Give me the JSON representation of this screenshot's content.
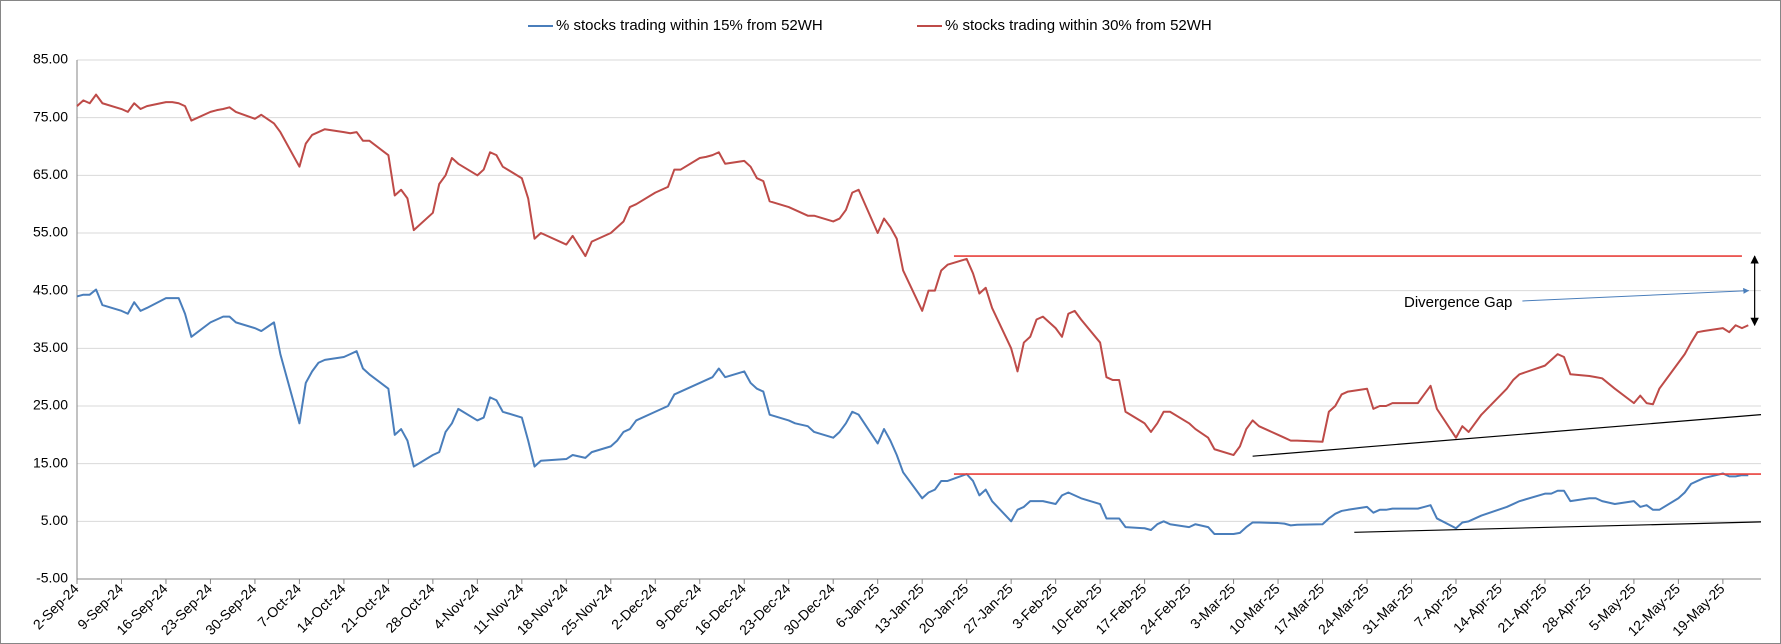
{
  "chart_data": {
    "type": "line",
    "x": [
      "2024-09-02",
      "2024-09-03",
      "2024-09-04",
      "2024-09-05",
      "2024-09-06",
      "2024-09-09",
      "2024-09-10",
      "2024-09-11",
      "2024-09-12",
      "2024-09-13",
      "2024-09-16",
      "2024-09-17",
      "2024-09-18",
      "2024-09-19",
      "2024-09-20",
      "2024-09-23",
      "2024-09-24",
      "2024-09-25",
      "2024-09-26",
      "2024-09-27",
      "2024-09-30",
      "2024-10-01",
      "2024-10-03",
      "2024-10-04",
      "2024-10-07",
      "2024-10-08",
      "2024-10-09",
      "2024-10-10",
      "2024-10-11",
      "2024-10-14",
      "2024-10-15",
      "2024-10-16",
      "2024-10-17",
      "2024-10-18",
      "2024-10-21",
      "2024-10-22",
      "2024-10-23",
      "2024-10-24",
      "2024-10-25",
      "2024-10-28",
      "2024-10-29",
      "2024-10-30",
      "2024-10-31",
      "2024-11-01",
      "2024-11-04",
      "2024-11-05",
      "2024-11-06",
      "2024-11-07",
      "2024-11-08",
      "2024-11-11",
      "2024-11-12",
      "2024-11-13",
      "2024-11-14",
      "2024-11-18",
      "2024-11-19",
      "2024-11-21",
      "2024-11-22",
      "2024-11-25",
      "2024-11-26",
      "2024-11-27",
      "2024-11-28",
      "2024-11-29",
      "2024-12-02",
      "2024-12-03",
      "2024-12-04",
      "2024-12-05",
      "2024-12-06",
      "2024-12-09",
      "2024-12-10",
      "2024-12-11",
      "2024-12-12",
      "2024-12-13",
      "2024-12-16",
      "2024-12-17",
      "2024-12-18",
      "2024-12-19",
      "2024-12-20",
      "2024-12-23",
      "2024-12-24",
      "2024-12-26",
      "2024-12-27",
      "2024-12-30",
      "2024-12-31",
      "2025-01-01",
      "2025-01-02",
      "2025-01-03",
      "2025-01-06",
      "2025-01-07",
      "2025-01-08",
      "2025-01-09",
      "2025-01-10",
      "2025-01-13",
      "2025-01-14",
      "2025-01-15",
      "2025-01-16",
      "2025-01-17",
      "2025-01-20",
      "2025-01-21",
      "2025-01-22",
      "2025-01-23",
      "2025-01-24",
      "2025-01-27",
      "2025-01-28",
      "2025-01-29",
      "2025-01-30",
      "2025-01-31",
      "2025-02-01",
      "2025-02-03",
      "2025-02-04",
      "2025-02-05",
      "2025-02-06",
      "2025-02-07",
      "2025-02-10",
      "2025-02-11",
      "2025-02-12",
      "2025-02-13",
      "2025-02-14",
      "2025-02-17",
      "2025-02-18",
      "2025-02-19",
      "2025-02-20",
      "2025-02-21",
      "2025-02-24",
      "2025-02-25",
      "2025-02-27",
      "2025-02-28",
      "2025-03-03",
      "2025-03-04",
      "2025-03-05",
      "2025-03-06",
      "2025-03-07",
      "2025-03-10",
      "2025-03-11",
      "2025-03-12",
      "2025-03-13",
      "2025-03-17",
      "2025-03-18",
      "2025-03-19",
      "2025-03-20",
      "2025-03-21",
      "2025-03-24",
      "2025-03-25",
      "2025-03-26",
      "2025-03-27",
      "2025-03-28",
      "2025-04-01",
      "2025-04-02",
      "2025-04-03",
      "2025-04-04",
      "2025-04-07",
      "2025-04-08",
      "2025-04-09",
      "2025-04-11",
      "2025-04-15",
      "2025-04-16",
      "2025-04-17",
      "2025-04-21",
      "2025-04-22",
      "2025-04-23",
      "2025-04-24",
      "2025-04-25",
      "2025-04-28",
      "2025-04-29",
      "2025-04-30",
      "2025-05-02",
      "2025-05-05",
      "2025-05-06",
      "2025-05-07",
      "2025-05-08",
      "2025-05-09",
      "2025-05-12",
      "2025-05-13",
      "2025-05-14",
      "2025-05-15",
      "2025-05-16",
      "2025-05-19",
      "2025-05-20",
      "2025-05-21",
      "2025-05-22",
      "2025-05-23"
    ],
    "series": [
      {
        "name": "% stocks trading within 15% from 52WH",
        "color": "#4a7ebb",
        "values": [
          44,
          44.3,
          44.3,
          45.2,
          42.5,
          41.5,
          41,
          43,
          41.5,
          42,
          43.7,
          43.7,
          43.7,
          41,
          37,
          39.5,
          40,
          40.5,
          40.5,
          39.5,
          38.5,
          38,
          39.5,
          34,
          22,
          29,
          31,
          32.5,
          33,
          33.5,
          34,
          34.5,
          31.5,
          30.5,
          28,
          20,
          21,
          19,
          14.5,
          16.5,
          17,
          20.5,
          22,
          24.5,
          22.5,
          23,
          26.5,
          26,
          24,
          23,
          19,
          14.5,
          15.5,
          15.8,
          16.5,
          16,
          17,
          18,
          19,
          20.5,
          21,
          22.5,
          24,
          24.5,
          25,
          27,
          27.5,
          29,
          29.5,
          30,
          31.5,
          30,
          31,
          29,
          28,
          27.5,
          23.5,
          22.5,
          22,
          21.5,
          20.5,
          19.5,
          20.5,
          22,
          24,
          23.5,
          18.5,
          21,
          19,
          16.5,
          13.5,
          9,
          10,
          10.5,
          12,
          12,
          13.2,
          12,
          9.5,
          10.5,
          8.5,
          5,
          7,
          7.5,
          8.5,
          8.5,
          8.5,
          8,
          9.5,
          10,
          9.5,
          9,
          8,
          5.5,
          5.5,
          5.5,
          4,
          3.8,
          3.5,
          4.5,
          5,
          4.5,
          4,
          4.5,
          4,
          2.8,
          2.8,
          3,
          4,
          4.8,
          4.8,
          4.7,
          4.6,
          4.3,
          4.4,
          4.5,
          5.5,
          6.3,
          6.8,
          7,
          7.5,
          6.5,
          7,
          7,
          7.2,
          7.2,
          7.5,
          7.8,
          5.5,
          3.8,
          4.8,
          5,
          6,
          7.5,
          8,
          8.5,
          9.8,
          9.8,
          10.3,
          10.3,
          8.5,
          9,
          9,
          8.5,
          8,
          8.5,
          7.5,
          7.8,
          7,
          7,
          9,
          10,
          11.5,
          12,
          12.5,
          13.3,
          12.8,
          12.8,
          13,
          13
        ]
      },
      {
        "name": "% stocks trading within 30% from 52WH",
        "color": "#be4b48",
        "values": [
          77,
          78,
          77.5,
          79,
          77.5,
          76.5,
          76,
          77.5,
          76.5,
          77,
          77.7,
          77.7,
          77.5,
          77,
          74.5,
          76,
          76.3,
          76.5,
          76.8,
          76,
          74.8,
          75.5,
          74,
          72.5,
          66.5,
          70.5,
          72,
          72.5,
          73,
          72.5,
          72.3,
          72.5,
          71,
          71,
          68.5,
          61.5,
          62.5,
          61,
          55.5,
          58.5,
          63.5,
          65,
          68,
          67,
          65,
          66,
          69,
          68.5,
          66.5,
          64.5,
          61,
          54,
          55,
          53,
          54.5,
          51,
          53.5,
          55,
          56,
          57,
          59.5,
          60,
          62,
          62.5,
          63,
          66,
          66,
          68,
          68.2,
          68.5,
          69,
          67,
          67.5,
          66.5,
          64.5,
          64,
          60.5,
          59.5,
          59,
          58,
          58,
          57,
          57.5,
          59,
          62,
          62.5,
          55,
          57.5,
          56,
          54,
          48.5,
          41.5,
          45,
          45,
          48.5,
          49.5,
          50.5,
          48,
          44.5,
          45.5,
          42,
          35,
          31,
          36,
          37,
          40,
          40.5,
          38.5,
          37,
          41,
          41.5,
          40,
          36,
          30,
          29.5,
          29.5,
          24,
          22,
          20.5,
          22,
          24,
          24,
          22,
          21,
          19.5,
          17.5,
          16.5,
          18,
          21,
          22.5,
          21.5,
          20,
          19.5,
          19,
          19,
          18.8,
          24,
          25,
          27,
          27.5,
          28,
          24.5,
          25,
          25,
          25.5,
          25.5,
          27,
          28.5,
          24.5,
          19.5,
          21.5,
          20.5,
          23.5,
          28,
          29.5,
          30.5,
          32,
          33,
          34,
          33.5,
          30.5,
          30.2,
          30,
          29.8,
          28,
          25.5,
          26.8,
          25.5,
          25.3,
          28,
          32.5,
          34,
          36,
          37.8,
          38,
          38.5,
          37.8,
          39,
          38.5,
          39
        ]
      }
    ],
    "xlim": [
      "2024-09-02",
      "2025-05-25"
    ],
    "xticks": [
      {
        "value": "2024-09-02",
        "label": "2-Sep-24"
      },
      {
        "value": "2024-09-09",
        "label": "9-Sep-24"
      },
      {
        "value": "2024-09-16",
        "label": "16-Sep-24"
      },
      {
        "value": "2024-09-23",
        "label": "23-Sep-24"
      },
      {
        "value": "2024-09-30",
        "label": "30-Sep-24"
      },
      {
        "value": "2024-10-07",
        "label": "7-Oct-24"
      },
      {
        "value": "2024-10-14",
        "label": "14-Oct-24"
      },
      {
        "value": "2024-10-21",
        "label": "21-Oct-24"
      },
      {
        "value": "2024-10-28",
        "label": "28-Oct-24"
      },
      {
        "value": "2024-11-04",
        "label": "4-Nov-24"
      },
      {
        "value": "2024-11-11",
        "label": "11-Nov-24"
      },
      {
        "value": "2024-11-18",
        "label": "18-Nov-24"
      },
      {
        "value": "2024-11-25",
        "label": "25-Nov-24"
      },
      {
        "value": "2024-12-02",
        "label": "2-Dec-24"
      },
      {
        "value": "2024-12-09",
        "label": "9-Dec-24"
      },
      {
        "value": "2024-12-16",
        "label": "16-Dec-24"
      },
      {
        "value": "2024-12-23",
        "label": "23-Dec-24"
      },
      {
        "value": "2024-12-30",
        "label": "30-Dec-24"
      },
      {
        "value": "2025-01-06",
        "label": "6-Jan-25"
      },
      {
        "value": "2025-01-13",
        "label": "13-Jan-25"
      },
      {
        "value": "2025-01-20",
        "label": "20-Jan-25"
      },
      {
        "value": "2025-01-27",
        "label": "27-Jan-25"
      },
      {
        "value": "2025-02-03",
        "label": "3-Feb-25"
      },
      {
        "value": "2025-02-10",
        "label": "10-Feb-25"
      },
      {
        "value": "2025-02-17",
        "label": "17-Feb-25"
      },
      {
        "value": "2025-02-24",
        "label": "24-Feb-25"
      },
      {
        "value": "2025-03-03",
        "label": "3-Mar-25"
      },
      {
        "value": "2025-03-10",
        "label": "10-Mar-25"
      },
      {
        "value": "2025-03-17",
        "label": "17-Mar-25"
      },
      {
        "value": "2025-03-24",
        "label": "24-Mar-25"
      },
      {
        "value": "2025-03-31",
        "label": "31-Mar-25"
      },
      {
        "value": "2025-04-07",
        "label": "7-Apr-25"
      },
      {
        "value": "2025-04-14",
        "label": "14-Apr-25"
      },
      {
        "value": "2025-04-21",
        "label": "21-Apr-25"
      },
      {
        "value": "2025-04-28",
        "label": "28-Apr-25"
      },
      {
        "value": "2025-05-05",
        "label": "5-May-25"
      },
      {
        "value": "2025-05-12",
        "label": "12-May-25"
      },
      {
        "value": "2025-05-19",
        "label": "19-May-25"
      }
    ],
    "ylim": [
      -5,
      85
    ],
    "yticks": [
      {
        "value": -5,
        "label": "-5.00"
      },
      {
        "value": 5,
        "label": "5.00"
      },
      {
        "value": 15,
        "label": "15.00"
      },
      {
        "value": 25,
        "label": "25.00"
      },
      {
        "value": 35,
        "label": "35.00"
      },
      {
        "value": 45,
        "label": "45.00"
      },
      {
        "value": 55,
        "label": "55.00"
      },
      {
        "value": 65,
        "label": "65.00"
      },
      {
        "value": 75,
        "label": "75.00"
      },
      {
        "value": 85,
        "label": "85.00"
      }
    ],
    "grid": true,
    "legend": "top",
    "reference_lines": [
      {
        "y": 51,
        "x": [
          "2025-01-18",
          "2025-05-22"
        ],
        "color": "#e8413c"
      },
      {
        "y": 13.2,
        "x": [
          "2025-01-18",
          "2025-05-25"
        ],
        "color": "#e8413c"
      }
    ],
    "trendlines": [
      {
        "x": [
          "2025-03-06",
          "2025-05-25"
        ],
        "y": [
          16.3,
          23.5
        ],
        "color": "#000000"
      },
      {
        "x": [
          "2025-03-22",
          "2025-05-25"
        ],
        "y": [
          3.1,
          4.9
        ],
        "color": "#000000"
      }
    ],
    "gap_marker": {
      "label": "Divergence Gap",
      "x": "2025-05-24",
      "from": 51,
      "to": 39
    }
  }
}
